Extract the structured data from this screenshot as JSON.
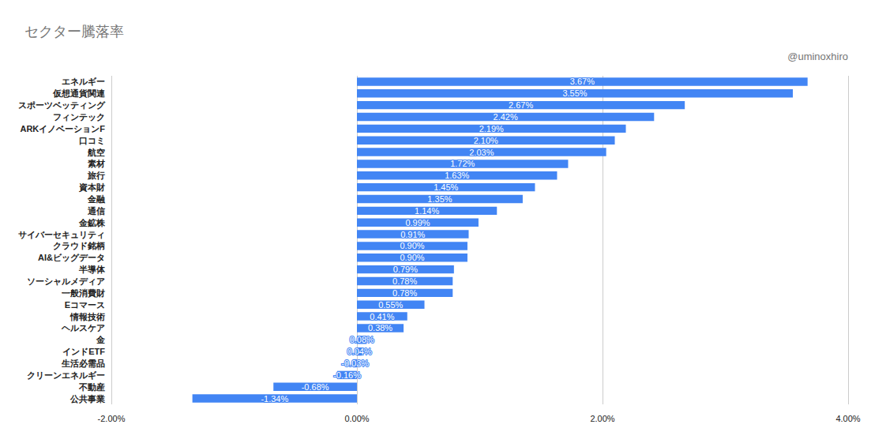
{
  "chart_data": {
    "type": "bar",
    "title": "セクター騰落率",
    "subtitle": "@uminoxhiro",
    "orientation": "horizontal",
    "categories": [
      "エネルギー",
      "仮想通貨関連",
      "スポーツベッティング",
      "フィンテック",
      "ARKイノベーションF",
      "口コミ",
      "航空",
      "素材",
      "旅行",
      "資本財",
      "金融",
      "通信",
      "金鉱株",
      "サイバーセキュリティ",
      "クラウド銘柄",
      "AI&ビッグデータ",
      "半導体",
      "ソーシャルメディア",
      "一般消費財",
      "Eコマース",
      "情報技術",
      "ヘルスケア",
      "金",
      "インドETF",
      "生活必需品",
      "クリーンエネルギー",
      "不動産",
      "公共事業"
    ],
    "values": [
      3.67,
      3.55,
      2.67,
      2.42,
      2.19,
      2.1,
      2.03,
      1.72,
      1.63,
      1.45,
      1.35,
      1.14,
      0.99,
      0.91,
      0.9,
      0.9,
      0.79,
      0.78,
      0.78,
      0.55,
      0.41,
      0.38,
      0.08,
      0.04,
      -0.03,
      -0.16,
      -0.68,
      -1.34
    ],
    "value_labels": [
      "3.67%",
      "3.55%",
      "2.67%",
      "2.42%",
      "2.19%",
      "2.10%",
      "2.03%",
      "1.72%",
      "1.63%",
      "1.45%",
      "1.35%",
      "1.14%",
      "0.99%",
      "0.91%",
      "0.90%",
      "0.90%",
      "0.79%",
      "0.78%",
      "0.78%",
      "0.55%",
      "0.41%",
      "0.38%",
      "0.08%",
      "0.04%",
      "-0.03%",
      "-0.16%",
      "-0.68%",
      "-1.34%"
    ],
    "color": "#4285f4",
    "xlim": [
      -2,
      4
    ],
    "xticks": [
      {
        "value": -2,
        "label": "-2.00%"
      },
      {
        "value": 0,
        "label": "0.00%"
      },
      {
        "value": 2,
        "label": "2.00%"
      },
      {
        "value": 4,
        "label": "4.00%"
      }
    ],
    "grid": true,
    "data_labels": true
  }
}
